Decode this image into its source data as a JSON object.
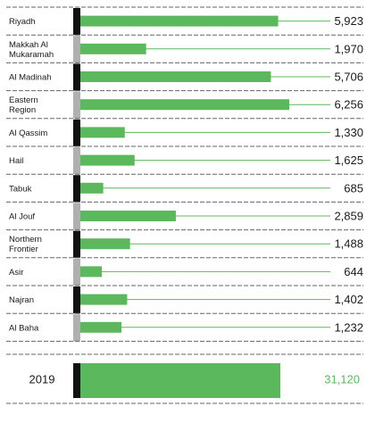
{
  "chart_data": {
    "type": "bar",
    "orientation": "horizontal",
    "categories": [
      "Riyadh",
      "Makkah Al\nMukaramah",
      "Al Madinah",
      "Eastern\nRegion",
      "Al Qassim",
      "Hail",
      "Tabuk",
      "Al Jouf",
      "Northern\nFrontier",
      "Asir",
      "Najran",
      "Al Baha"
    ],
    "values": [
      5923,
      1970,
      5706,
      6256,
      1330,
      1625,
      685,
      2859,
      1488,
      644,
      1402,
      1232
    ],
    "value_labels": [
      "5,923",
      "1,970",
      "5,706",
      "6,256",
      "1,330",
      "1,625",
      "685",
      "2,859",
      "1,488",
      "644",
      "1,402",
      "1,232"
    ],
    "total": {
      "label": "2019",
      "value": 31120,
      "value_label": "31,120"
    },
    "colors": {
      "bar": "#5cb85c",
      "marker_dark": "#111111",
      "marker_gray": "#b0b0b0",
      "total_value": "#5cb85c"
    }
  }
}
